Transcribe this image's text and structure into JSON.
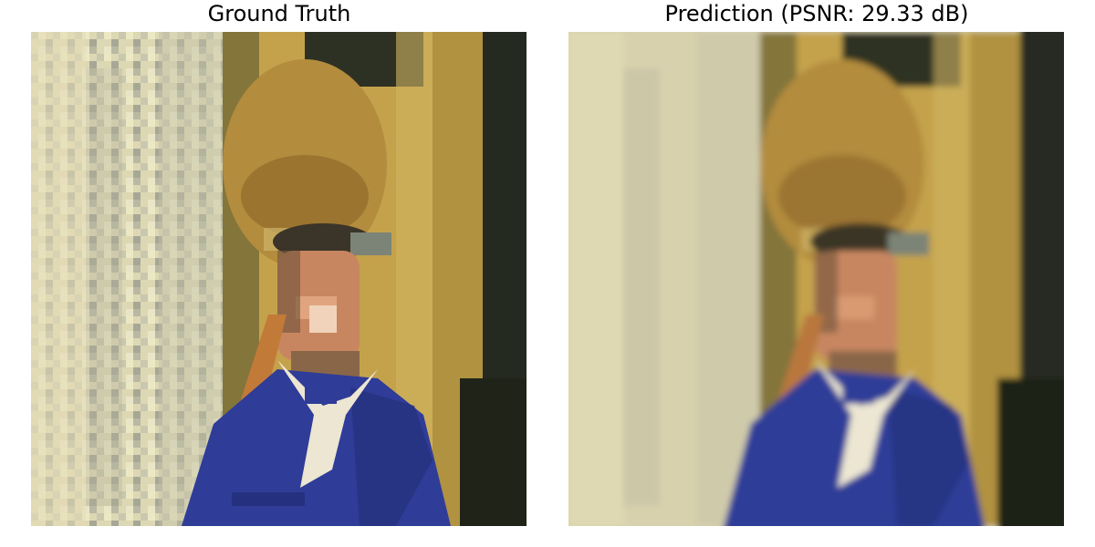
{
  "panels": [
    {
      "title": "Ground Truth"
    },
    {
      "title": "Prediction (PSNR: 29.33 dB)"
    }
  ],
  "colors": {
    "background": "#ffffff",
    "stone_wall": "#ddd8b4",
    "wooden_panel": "#c4a24c",
    "dark_shadow": "#252a20",
    "hat": "#b38c3e",
    "skin": "#c88660",
    "jacket_blue": "#2f3c98",
    "collar_white": "#ece6d2",
    "strap_orange": "#c27a38"
  }
}
